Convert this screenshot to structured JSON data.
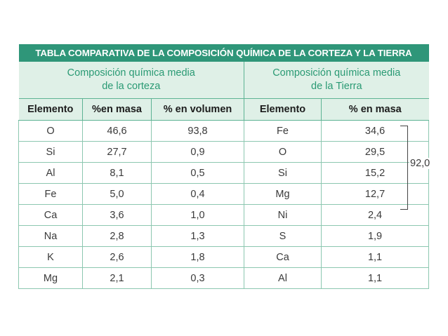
{
  "title": "TABLA COMPARATIVA DE LA COMPOSICIÓN QUÍMICA DE LA CORTEZA Y LA TIERRA",
  "groups": {
    "crust": "Composición química media\nde la corteza",
    "earth": "Composición química media\nde la Tierra"
  },
  "columns": {
    "crust_element": "Elemento",
    "crust_mass": "%en masa",
    "crust_volume": "% en volumen",
    "earth_element": "Elemento",
    "earth_mass": "% en masa"
  },
  "rows": [
    {
      "crust_element": "O",
      "crust_mass": "46,6",
      "crust_volume": "93,8",
      "earth_element": "Fe",
      "earth_mass": "34,6"
    },
    {
      "crust_element": "Si",
      "crust_mass": "27,7",
      "crust_volume": "0,9",
      "earth_element": "O",
      "earth_mass": "29,5"
    },
    {
      "crust_element": "Al",
      "crust_mass": "8,1",
      "crust_volume": "0,5",
      "earth_element": "Si",
      "earth_mass": "15,2"
    },
    {
      "crust_element": "Fe",
      "crust_mass": "5,0",
      "crust_volume": "0,4",
      "earth_element": "Mg",
      "earth_mass": "12,7"
    },
    {
      "crust_element": "Ca",
      "crust_mass": "3,6",
      "crust_volume": "1,0",
      "earth_element": "Ni",
      "earth_mass": "2,4"
    },
    {
      "crust_element": "Na",
      "crust_mass": "2,8",
      "crust_volume": "1,3",
      "earth_element": "S",
      "earth_mass": "1,9"
    },
    {
      "crust_element": "K",
      "crust_mass": "2,6",
      "crust_volume": "1,8",
      "earth_element": "Ca",
      "earth_mass": "1,1"
    },
    {
      "crust_element": "Mg",
      "crust_mass": "2,1",
      "crust_volume": "0,3",
      "earth_element": "Al",
      "earth_mass": "1,1"
    }
  ],
  "bracket_total": "92,0",
  "colors": {
    "header_bg": "#2f9679",
    "subheader_bg": "#dff0e7",
    "subheader_text": "#2a9a74"
  }
}
